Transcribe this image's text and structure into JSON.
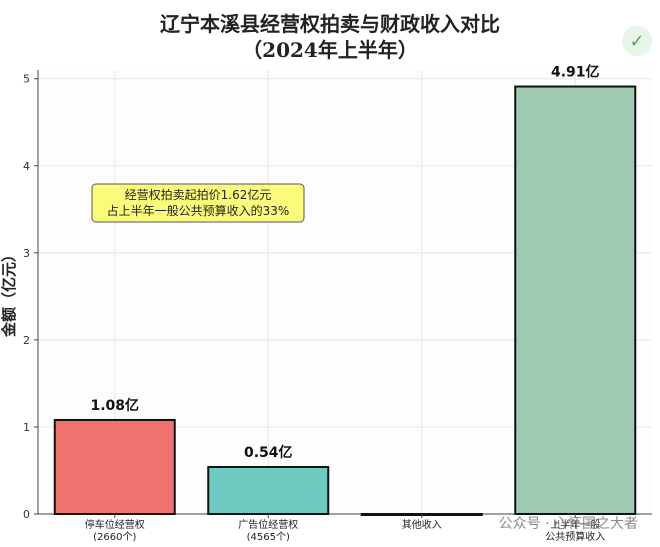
{
  "header": {
    "title_line1": "辽宁本溪县经营权拍卖与财政收入对比",
    "title_line2": "（2024年上半年）"
  },
  "logo": {
    "icon": "check-logo-icon",
    "glyph": "✓"
  },
  "watermark": "公众号 · 心怀国之大者",
  "chart_data": {
    "type": "bar",
    "title": "辽宁本溪县经营权拍卖与财政收入对比（2024年上半年）",
    "ylabel": "金额（亿元）",
    "xlabel": "",
    "ylim": [
      0,
      5.1
    ],
    "yticks": [
      0,
      1,
      2,
      3,
      4,
      5
    ],
    "grid": true,
    "categories": [
      "停车位经营权\n(2660个)",
      "广告位经营权\n(4565个)",
      "其他收入",
      "上半年一般\n公共预算收入"
    ],
    "values": [
      1.08,
      0.54,
      0.0,
      4.91
    ],
    "value_labels": [
      "1.08亿",
      "0.54亿",
      "",
      "4.91亿"
    ],
    "colors": [
      "#ee736e",
      "#6fcbc1",
      "#9fbcd6",
      "#9ecbb1"
    ],
    "annotation": {
      "line1": "经营权拍卖起拍价1.62亿元",
      "line2": "占上半年一般公共预算收入的33%",
      "bg": "#fbfb7b"
    }
  }
}
